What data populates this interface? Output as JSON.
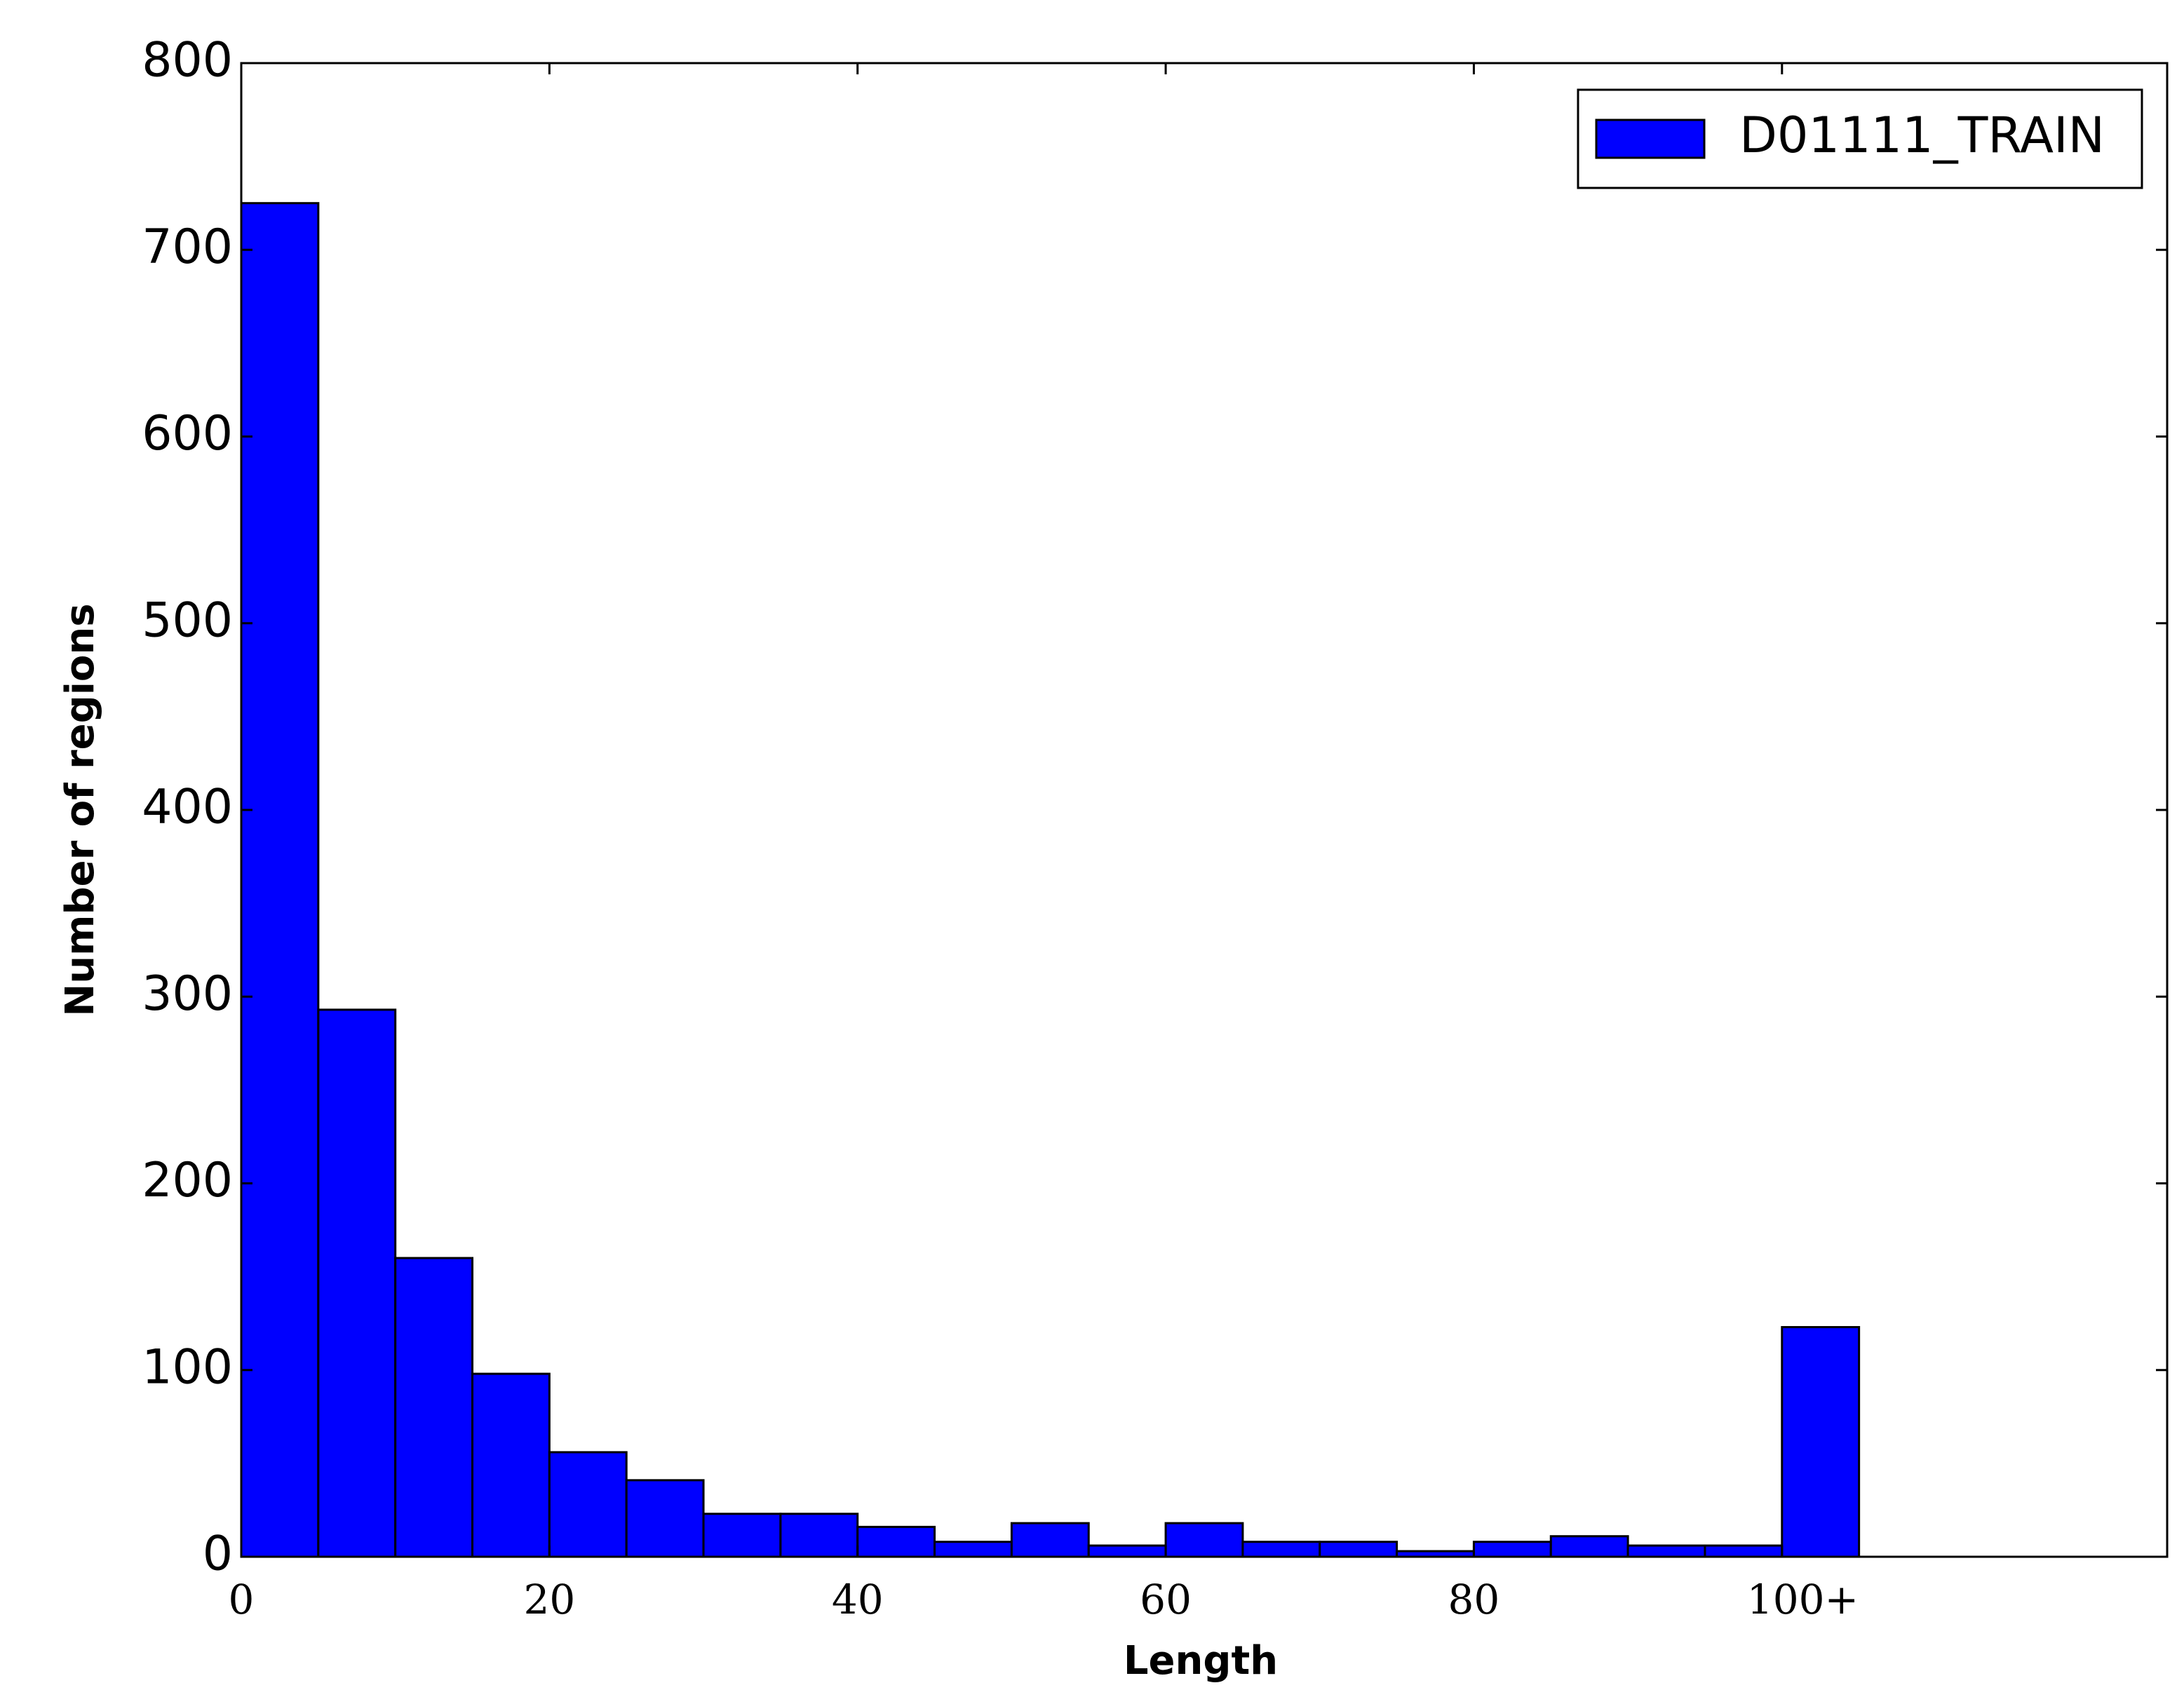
{
  "chart_data": {
    "type": "histogram",
    "x_label": "Length",
    "y_label": "Number of regions",
    "bins": [
      0,
      5,
      10,
      15,
      20,
      25,
      30,
      35,
      40,
      45,
      50,
      55,
      60,
      65,
      70,
      75,
      80,
      85,
      90,
      95,
      100,
      105
    ],
    "series": [
      {
        "name": "D01111_TRAIN",
        "color": "#0000ff",
        "values": [
          725,
          293,
          160,
          98,
          56,
          41,
          23,
          23,
          16,
          8,
          18,
          6,
          18,
          8,
          8,
          3,
          8,
          11,
          6,
          6,
          123
        ]
      }
    ],
    "xlim": [
      0,
      125
    ],
    "ylim": [
      0,
      800
    ],
    "xticks": [
      0,
      20,
      40,
      60,
      80,
      {
        "value": 100,
        "label": "100+"
      }
    ],
    "yticks": [
      0,
      100,
      200,
      300,
      400,
      500,
      600,
      700,
      800
    ],
    "legend": "upper right"
  }
}
